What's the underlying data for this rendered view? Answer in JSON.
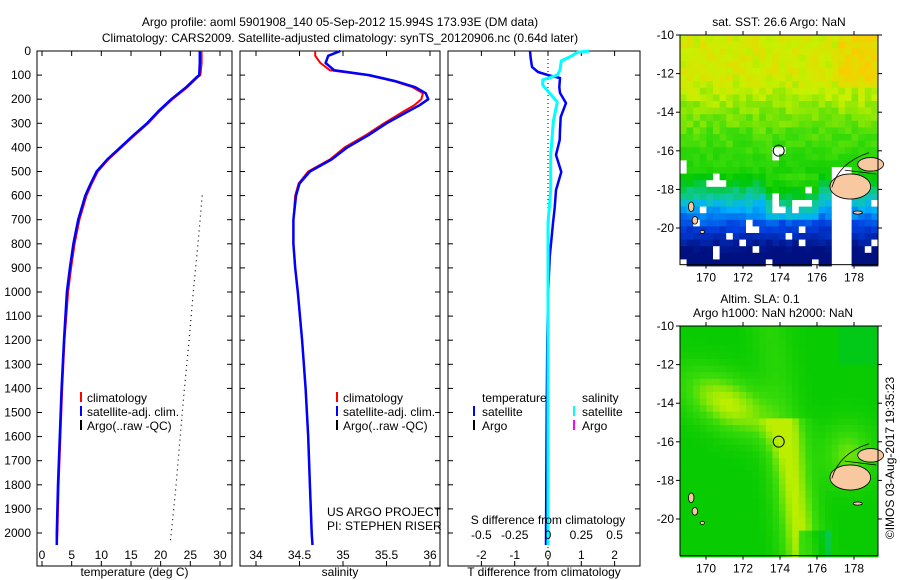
{
  "title": {
    "line1": "Argo profile: aoml 5901908_140 05-Sep-2012 15.994S 173.93E (DM data)",
    "line2": "Climatology: CARS2009. Satellite-adjusted climatology: synTS_20120906.nc (0.64d later)"
  },
  "credit": "©IMOS 03-Aug-2017 19:35:23",
  "colors": {
    "climatology": "#ff0000",
    "satellite": "#0000ff",
    "argo": "#000000",
    "salinity_satellite": "#00ffff",
    "salinity_argo": "#ff00ff"
  },
  "chart_data": [
    {
      "type": "line",
      "id": "temperature",
      "xlabel": "temperature (deg C)",
      "ylabel": "",
      "xlim": [
        -0.8,
        32
      ],
      "ylim": [
        2137,
        0
      ],
      "xticks": [
        "0",
        "5",
        "10",
        "15",
        "20",
        "25",
        "30"
      ],
      "yticks": [
        "0",
        "100",
        "200",
        "300",
        "400",
        "500",
        "600",
        "700",
        "800",
        "900",
        "1000",
        "1100",
        "1200",
        "1300",
        "1400",
        "1500",
        "1600",
        "1700",
        "1800",
        "1900",
        "2000"
      ],
      "legend": [
        "climatology",
        "satellite-adj. clim.",
        "Argo(..raw -QC)"
      ],
      "series": [
        {
          "name": "climatology",
          "color": "#ff0000",
          "depth": [
            0,
            50,
            100,
            110,
            150,
            200,
            250,
            300,
            350,
            400,
            450,
            500,
            550,
            600,
            700,
            800,
            900,
            1000,
            1200,
            1400,
            1600,
            1800,
            2000,
            2050
          ],
          "values": [
            26.9,
            26.9,
            26.7,
            26.2,
            24.5,
            22.0,
            19.8,
            17.9,
            15.6,
            13.4,
            11.2,
            9.4,
            8.4,
            7.5,
            6.3,
            5.5,
            4.9,
            4.4,
            3.8,
            3.4,
            3.1,
            2.8,
            2.6,
            2.5
          ]
        },
        {
          "name": "satellite-adj. clim.",
          "color": "#0000ff",
          "depth": [
            0,
            50,
            100,
            110,
            150,
            200,
            250,
            300,
            350,
            400,
            450,
            500,
            550,
            600,
            700,
            800,
            900,
            1000,
            1200,
            1400,
            1600,
            1800,
            2000,
            2050
          ],
          "values": [
            26.6,
            26.6,
            26.5,
            26.0,
            24.3,
            21.8,
            19.6,
            17.7,
            15.4,
            13.2,
            11.0,
            9.2,
            8.2,
            7.3,
            6.1,
            5.3,
            4.7,
            4.2,
            3.7,
            3.3,
            3.0,
            2.7,
            2.5,
            2.5
          ]
        },
        {
          "name": "Argo(..raw -QC)",
          "color": "#000000",
          "dotted": true,
          "depth": [
            600,
            800,
            1000,
            1200,
            1400,
            1600,
            1800,
            2000,
            2040
          ],
          "values": [
            27.0,
            26.3,
            25.5,
            24.8,
            24.0,
            23.3,
            22.6,
            21.8,
            21.6
          ]
        }
      ]
    },
    {
      "type": "line",
      "id": "salinity",
      "xlabel": "salinity",
      "xlim": [
        33.82,
        36.11
      ],
      "ylim": [
        2137,
        0
      ],
      "xticks": [
        "34",
        "34.5",
        "35",
        "35.5",
        "36"
      ],
      "legend": [
        "climatology",
        "satellite-adj. clim.",
        "Argo(..raw -QC)"
      ],
      "annotation": [
        "US ARGO PROJECT",
        "PI: STEPHEN RISER"
      ],
      "series": [
        {
          "name": "climatology",
          "color": "#ff0000",
          "depth": [
            0,
            20,
            50,
            80,
            100,
            125,
            150,
            175,
            200,
            225,
            250,
            300,
            350,
            400,
            450,
            500,
            550,
            600,
            700,
            800,
            900,
            1000,
            1200,
            1400,
            1600,
            1800,
            2000,
            2050
          ],
          "values": [
            34.68,
            34.68,
            34.74,
            34.85,
            35.28,
            35.58,
            35.8,
            35.92,
            35.9,
            35.82,
            35.7,
            35.47,
            35.26,
            35.02,
            34.85,
            34.6,
            34.49,
            34.45,
            34.43,
            34.43,
            34.45,
            34.48,
            34.53,
            34.57,
            34.6,
            34.62,
            34.64,
            34.65
          ]
        },
        {
          "name": "satellite-adj. clim.",
          "color": "#0000ff",
          "depth": [
            0,
            20,
            50,
            80,
            100,
            125,
            150,
            175,
            200,
            225,
            250,
            300,
            350,
            400,
            450,
            500,
            550,
            600,
            700,
            800,
            900,
            1000,
            1200,
            1400,
            1600,
            1800,
            2000,
            2050
          ],
          "values": [
            34.97,
            34.83,
            34.8,
            34.9,
            35.3,
            35.6,
            35.83,
            35.95,
            35.98,
            35.88,
            35.75,
            35.5,
            35.29,
            35.05,
            34.87,
            34.62,
            34.5,
            34.46,
            34.43,
            34.43,
            34.45,
            34.48,
            34.53,
            34.57,
            34.6,
            34.62,
            34.64,
            34.65
          ]
        }
      ]
    },
    {
      "type": "line",
      "id": "difference",
      "xlabel": "T difference from climatology",
      "x2label": "S difference from climatology",
      "xlim": [
        -3,
        2.76
      ],
      "ylim": [
        2137,
        0
      ],
      "xticks": [
        "-2",
        "-1",
        "0",
        "1",
        "2"
      ],
      "x2ticks": [
        "-0.5",
        "-0.25",
        "0",
        "0.25",
        "0.5"
      ],
      "legend": {
        "temperature_header": "temperature",
        "salinity_header": "salinity",
        "entries": [
          "satellite",
          "Argo",
          "satellite",
          "Argo"
        ]
      },
      "series": [
        {
          "name": "temperature satellite",
          "color": "#0000ff",
          "axis": "T",
          "depth": [
            0,
            30,
            66,
            87,
            100,
            112,
            150,
            174,
            216,
            274,
            330,
            369,
            431,
            502,
            577,
            650,
            714,
            855,
            1020,
            1200,
            1500,
            1800,
            2050
          ],
          "values": [
            -0.54,
            -0.52,
            -0.48,
            -0.3,
            0,
            0.36,
            0.34,
            0.36,
            0.54,
            0.38,
            0.36,
            0.35,
            0.24,
            0.4,
            0.24,
            0.2,
            0.15,
            0.05,
            0.0,
            -0.02,
            -0.04,
            -0.05,
            -0.06
          ]
        },
        {
          "name": "salinity satellite",
          "color": "#00ffff",
          "axis": "S",
          "depth": [
            0,
            5,
            20,
            41,
            79,
            100,
            120,
            141,
            174,
            211,
            293,
            431,
            577,
            714,
            1020,
            1500,
            2050
          ],
          "values": [
            0.31,
            0.22,
            0.18,
            0.1,
            0.09,
            0.07,
            -0.04,
            -0.04,
            0.01,
            0.07,
            0.04,
            0.02,
            0.02,
            0.0,
            0.0,
            0.0,
            0.0
          ]
        }
      ]
    },
    {
      "type": "heatmap",
      "id": "sst-map",
      "title": "sat. SST: 26.6 Argo: NaN",
      "lon_range": [
        168.6,
        179.3
      ],
      "lat_range": [
        -21.9,
        -10
      ],
      "xticks": [
        "170",
        "172",
        "174",
        "176",
        "178"
      ],
      "yticks": [
        "-10",
        "-12",
        "-14",
        "-16",
        "-18",
        "-20"
      ],
      "marker": {
        "lon": 173.93,
        "lat": -15.994
      }
    },
    {
      "type": "heatmap",
      "id": "sla-map",
      "title": "Altim. SLA: 0.1",
      "subtitle": "Argo h1000: NaN h2000: NaN",
      "lon_range": [
        168.6,
        179.3
      ],
      "lat_range": [
        -21.9,
        -10
      ],
      "xticks": [
        "170",
        "172",
        "174",
        "176",
        "178"
      ],
      "yticks": [
        "-10",
        "-12",
        "-14",
        "-16",
        "-18",
        "-20"
      ],
      "marker": {
        "lon": 173.93,
        "lat": -15.994
      }
    }
  ]
}
